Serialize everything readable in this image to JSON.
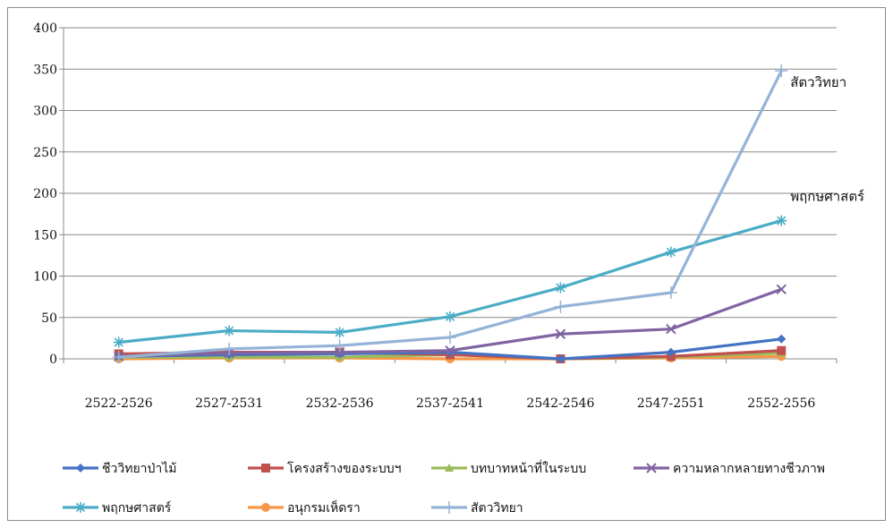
{
  "chart_data": {
    "type": "line",
    "title": "",
    "xlabel": "",
    "ylabel": "",
    "categories": [
      "2522-2526",
      "2527-2531",
      "2532-2536",
      "2537-2541",
      "2542-2546",
      "2547-2551",
      "2552-2556"
    ],
    "ylim": [
      0,
      400
    ],
    "yticks": [
      0,
      50,
      100,
      150,
      200,
      250,
      300,
      350,
      400
    ],
    "grid": true,
    "legend_position": "bottom",
    "series": [
      {
        "name": "ชีววิทยาป่าไม้",
        "color": "#4472C4",
        "marker": "diamond",
        "values": [
          3,
          5,
          6,
          8,
          0,
          8,
          24
        ]
      },
      {
        "name": "โครงสร้างของระบบฯ",
        "color": "#C0504D",
        "marker": "square",
        "values": [
          6,
          8,
          8,
          5,
          0,
          3,
          10
        ]
      },
      {
        "name": "บทบาทหน้าที่ในระบบ",
        "color": "#9BBB59",
        "marker": "triangle",
        "values": [
          2,
          2,
          2,
          5,
          0,
          2,
          7
        ]
      },
      {
        "name": "ความหลากหลายทางชีวภาพ",
        "color": "#8064A2",
        "marker": "x",
        "values": [
          3,
          7,
          8,
          10,
          30,
          36,
          84
        ]
      },
      {
        "name": "พฤกษศาสตร์",
        "color": "#4BACC6",
        "marker": "star",
        "values": [
          20,
          34,
          32,
          51,
          86,
          129,
          167
        ]
      },
      {
        "name": "อนุกรมเห็ดรา",
        "color": "#F79646",
        "marker": "circle",
        "values": [
          0,
          1,
          1,
          0,
          0,
          1,
          3
        ]
      },
      {
        "name": "สัตววิทยา",
        "color": "#95B3D7",
        "marker": "plus",
        "values": [
          2,
          12,
          16,
          26,
          63,
          80,
          348
        ]
      }
    ],
    "annotations": [
      {
        "text": "สัตววิทยา",
        "series": "สัตววิทยา"
      },
      {
        "text": "พฤกษศาสตร์",
        "series": "พฤกษศาสตร์"
      }
    ]
  }
}
